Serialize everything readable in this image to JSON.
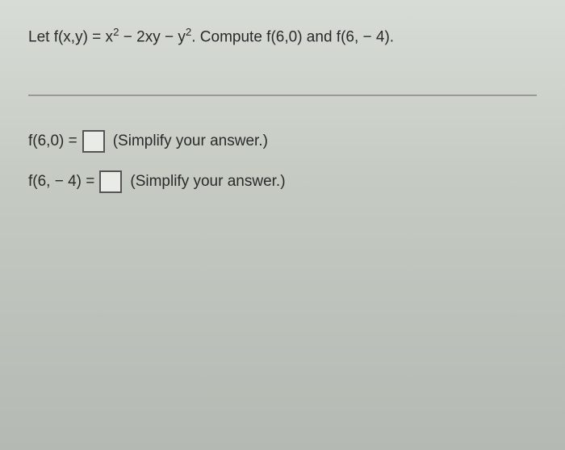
{
  "problem": {
    "prefix": "Let f(x,y) = x",
    "exp1": "2",
    "mid1": " − 2xy − y",
    "exp2": "2",
    "suffix": ". Compute f(6,0) and f(6, − 4)."
  },
  "answers": [
    {
      "label": "f(6,0) = ",
      "hint": "(Simplify your answer.)"
    },
    {
      "label": "f(6, − 4) = ",
      "hint": "(Simplify your answer.)"
    }
  ],
  "style": {
    "background_gradient_top": "#d8dcd6",
    "background_gradient_mid": "#c5cbc3",
    "background_gradient_bottom": "#b4bab3",
    "text_color": "#2a2a2a",
    "divider_color": "#999999",
    "input_border_color": "#555555",
    "input_background": "#e8ebe6",
    "font_size_pt": 14.5,
    "font_family": "Arial, sans-serif"
  }
}
